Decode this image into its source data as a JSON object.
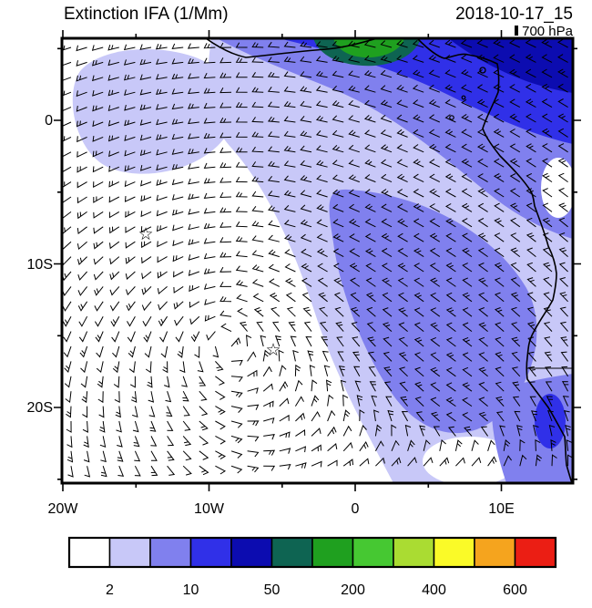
{
  "header": {
    "title": "Extinction IFA (1/Mm)",
    "datetime": "2018-10-17_15",
    "level": "700 hPa"
  },
  "axes": {
    "y_ticks": [
      {
        "label": "0",
        "lat": 0
      },
      {
        "label": "10S",
        "lat": -10
      },
      {
        "label": "20S",
        "lat": -20
      }
    ],
    "y_minor": [
      5,
      -5,
      -15,
      -25
    ],
    "x_ticks": [
      {
        "label": "20W",
        "lon": -20
      },
      {
        "label": "10W",
        "lon": -10
      },
      {
        "label": "0",
        "lon": 0
      },
      {
        "label": "10E",
        "lon": 10
      }
    ],
    "x_minor": [
      -15,
      -5,
      5
    ]
  },
  "colorbar": {
    "colors": [
      "#ffffff",
      "#c8c8f8",
      "#8080ee",
      "#3030e8",
      "#0c0cb0",
      "#0e6452",
      "#1fa01f",
      "#46c832",
      "#aadc32",
      "#fafa28",
      "#f5a41e",
      "#eb1e14"
    ],
    "levels": [
      2,
      5,
      10,
      20,
      50,
      100,
      200,
      300,
      400,
      500,
      600
    ],
    "labels": [
      "2",
      "10",
      "50",
      "200",
      "400",
      "600"
    ]
  },
  "markers": {
    "glyph": "☆",
    "points": [
      {
        "lon": -14.3,
        "lat": -7.9
      },
      {
        "lon": -5.6,
        "lat": -16.0
      }
    ]
  },
  "chart_data": {
    "type": "heatmap",
    "subtype": "filled-contour-map-with-wind-barbs",
    "title": "Extinction IFA (1/Mm)",
    "time": "2018-10-17_15",
    "pressure_level": "700 hPa",
    "units": "1/Mm",
    "lon_range": [
      -20,
      15
    ],
    "lat_range": [
      -26,
      6
    ],
    "x_tick_labels": [
      "20W",
      "10W",
      "0",
      "10E"
    ],
    "y_tick_labels": [
      "0",
      "10S",
      "20S"
    ],
    "fill_levels": [
      2,
      5,
      10,
      20,
      50,
      100,
      200,
      300,
      400,
      500,
      600
    ],
    "palette": [
      "#ffffff",
      "#c8c8f8",
      "#8080ee",
      "#3030e8",
      "#0c0cb0",
      "#0e6452",
      "#1fa01f",
      "#46c832",
      "#aadc32",
      "#fafa28",
      "#f5a41e",
      "#eb1e14"
    ],
    "colorbar_labels": [
      "2",
      "10",
      "50",
      "200",
      "400",
      "600"
    ],
    "legend_position": "bottom",
    "grid": false,
    "overlays": [
      "wind barbs",
      "coastline",
      "country border",
      "two star markers"
    ],
    "markers": [
      {
        "symbol": "star",
        "lon": -14.3,
        "lat": -7.9
      },
      {
        "symbol": "star",
        "lon": -5.6,
        "lat": -16.0
      }
    ],
    "field_summary": [
      {
        "region": "north of equator / Gulf of Guinea coast",
        "approx_extinction": "50-600"
      },
      {
        "region": "plume arcing from equator toward Angola coast",
        "approx_extinction": "10-50"
      },
      {
        "region": "fringe band northwest of plume core",
        "approx_extinction": "2-10"
      },
      {
        "region": "southwest quadrant of domain",
        "approx_extinction": "<2"
      }
    ]
  }
}
